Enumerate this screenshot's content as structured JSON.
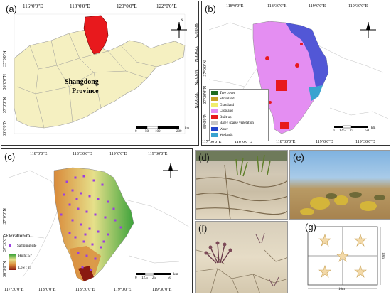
{
  "panels": {
    "a": {
      "label": "(a)",
      "lon_ticks": [
        "116°0'0\"E",
        "118°0'0\"E",
        "120°0'0\"E",
        "122°0'0\"E"
      ],
      "lat_ticks": [
        "38°0'0\"N",
        "37°0'0\"N",
        "36°0'0\"N",
        "35°0'0\"N"
      ],
      "lat_ticks_right": [
        "38°0'0\"N",
        "37°0'0\"N",
        "36°0'0\"N",
        "35°0'0\"N"
      ],
      "province_label_1": "Shangdong",
      "province_label_2": "Province",
      "scale": [
        "0",
        "50",
        "100",
        "200"
      ],
      "scale_unit": "km",
      "highlight_color": "#e8191d",
      "land_color": "#f5f0c1"
    },
    "b": {
      "label": "(b)",
      "lon_ticks": [
        "118°0'0\"E",
        "118°30'0\"E",
        "119°0'0\"E",
        "119°30'0\"E"
      ],
      "lon_ticks_bottom": [
        "117°30'0\"E",
        "118°0'0\"E",
        "118°30'0\"E",
        "119°0'0\"E",
        "119°30'0\"E"
      ],
      "lat_ticks": [
        "38°0'0\"N",
        "37°30'0\"N",
        "37°0'0\"N"
      ],
      "legend": [
        {
          "name": "Tree cover",
          "color": "#1f6b1f"
        },
        {
          "name": "Shrubland",
          "color": "#c9a227"
        },
        {
          "name": "Grassland",
          "color": "#f0ee6c"
        },
        {
          "name": "Cropland",
          "color": "#e48ef2"
        },
        {
          "name": "Built-up",
          "color": "#e8191d"
        },
        {
          "name": "Bare / sparse vegetation",
          "color": "#c8c8c8"
        },
        {
          "name": "Water",
          "color": "#2244cc"
        },
        {
          "name": "Wetlands",
          "color": "#3aa3d0"
        }
      ],
      "scale": [
        "0",
        "12.5",
        "25",
        "50"
      ],
      "scale_unit": "km"
    },
    "c": {
      "label": "(c)",
      "lon_ticks": [
        "118°0'0\"E",
        "118°30'0\"E",
        "119°0'0\"E",
        "119°30'0\"E"
      ],
      "lon_ticks_bottom": [
        "117°30'0\"E",
        "118°0'0\"E",
        "118°30'0\"E",
        "119°0'0\"E",
        "119°30'0\"E"
      ],
      "lat_ticks": [
        "38°0'0\"N",
        "37°30'0\"N",
        "37°0'0\"N"
      ],
      "elevation_title": "Elevation/m",
      "sampling_label": "Sampling site",
      "high_label": "High : 57",
      "low_label": "Low : 24",
      "scale": [
        "0",
        "12.5",
        "25",
        "50"
      ],
      "scale_unit": "km",
      "sample_color": "#9b3fe0"
    },
    "d": {
      "label": "(d)"
    },
    "e": {
      "label": "(e)"
    },
    "f": {
      "label": "(f)"
    },
    "g": {
      "label": "(g)",
      "width_label": "10m",
      "height_label": "10m"
    }
  }
}
